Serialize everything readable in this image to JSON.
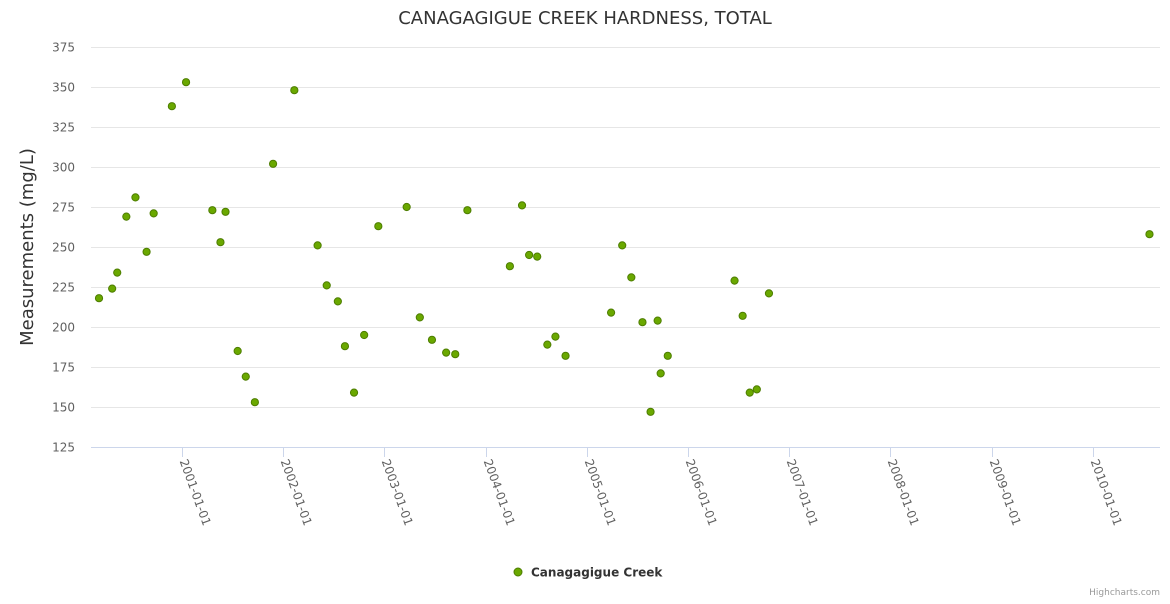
{
  "chart_data": {
    "type": "scatter",
    "title": "CANAGAGIGUE CREEK HARDNESS, TOTAL",
    "xlabel": "",
    "ylabel": "Measurements (mg/L)",
    "ylim": [
      125,
      375
    ],
    "yticks": [
      125,
      150,
      175,
      200,
      225,
      250,
      275,
      300,
      325,
      350,
      375
    ],
    "xlim_years": [
      2000.1,
      2010.66
    ],
    "xticks": [
      {
        "year": 2001,
        "label": "2001-01-01"
      },
      {
        "year": 2002,
        "label": "2002-01-01"
      },
      {
        "year": 2003,
        "label": "2003-01-01"
      },
      {
        "year": 2004,
        "label": "2004-01-01"
      },
      {
        "year": 2005,
        "label": "2005-01-01"
      },
      {
        "year": 2006,
        "label": "2006-01-01"
      },
      {
        "year": 2007,
        "label": "2007-01-01"
      },
      {
        "year": 2008,
        "label": "2008-01-01"
      },
      {
        "year": 2009,
        "label": "2009-01-01"
      },
      {
        "year": 2010,
        "label": "2010-01-01"
      }
    ],
    "grid": true,
    "legend_position": "bottom-center",
    "series": [
      {
        "name": "Canagagigue Creek",
        "color": "#6aa800",
        "border_color": "#4d7d00",
        "points": [
          [
            2000.18,
            218
          ],
          [
            2000.31,
            224
          ],
          [
            2000.36,
            234
          ],
          [
            2000.45,
            269
          ],
          [
            2000.54,
            281
          ],
          [
            2000.65,
            247
          ],
          [
            2000.72,
            271
          ],
          [
            2000.9,
            338
          ],
          [
            2001.04,
            353
          ],
          [
            2001.3,
            273
          ],
          [
            2001.38,
            253
          ],
          [
            2001.43,
            272
          ],
          [
            2001.55,
            185
          ],
          [
            2001.63,
            169
          ],
          [
            2001.72,
            153
          ],
          [
            2001.9,
            302
          ],
          [
            2002.11,
            348
          ],
          [
            2002.34,
            251
          ],
          [
            2002.43,
            226
          ],
          [
            2002.54,
            216
          ],
          [
            2002.61,
            188
          ],
          [
            2002.7,
            159
          ],
          [
            2002.8,
            195
          ],
          [
            2002.94,
            263
          ],
          [
            2003.22,
            275
          ],
          [
            2003.35,
            206
          ],
          [
            2003.47,
            192
          ],
          [
            2003.61,
            184
          ],
          [
            2003.7,
            183
          ],
          [
            2003.82,
            273
          ],
          [
            2004.24,
            238
          ],
          [
            2004.36,
            276
          ],
          [
            2004.43,
            245
          ],
          [
            2004.51,
            244
          ],
          [
            2004.61,
            189
          ],
          [
            2004.69,
            194
          ],
          [
            2004.79,
            182
          ],
          [
            2005.24,
            209
          ],
          [
            2005.35,
            251
          ],
          [
            2005.44,
            231
          ],
          [
            2005.55,
            203
          ],
          [
            2005.63,
            147
          ],
          [
            2005.7,
            204
          ],
          [
            2005.73,
            171
          ],
          [
            2005.8,
            182
          ],
          [
            2006.46,
            229
          ],
          [
            2006.54,
            207
          ],
          [
            2006.61,
            159
          ],
          [
            2006.68,
            161
          ],
          [
            2006.8,
            221
          ],
          [
            2010.56,
            258
          ]
        ]
      }
    ]
  },
  "credits": "Highcharts.com"
}
